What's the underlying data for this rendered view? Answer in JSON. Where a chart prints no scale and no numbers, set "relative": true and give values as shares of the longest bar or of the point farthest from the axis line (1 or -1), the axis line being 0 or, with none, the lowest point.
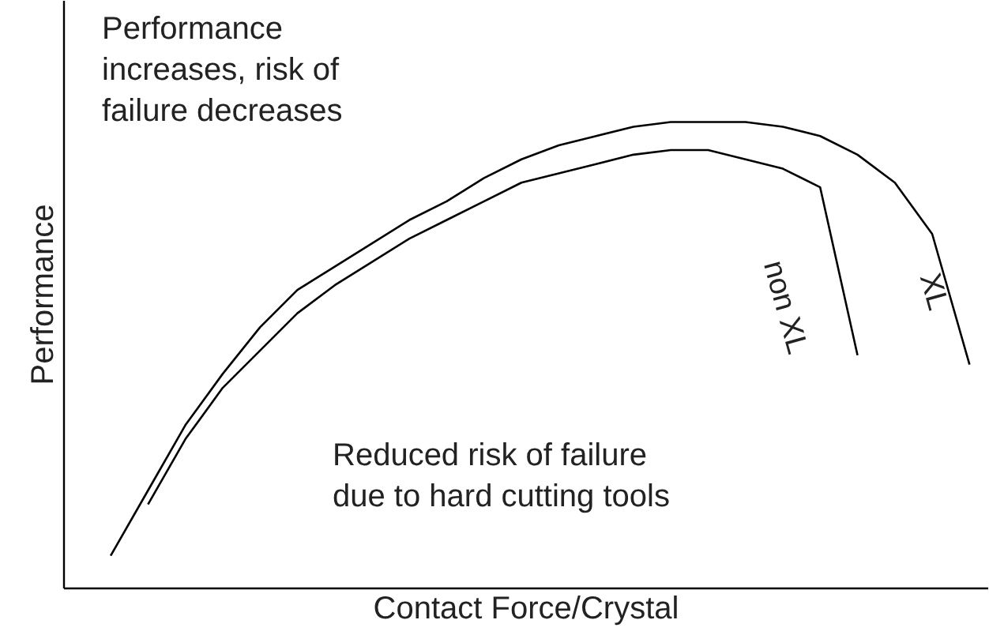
{
  "chart_data": {
    "type": "line",
    "relative": true,
    "xlabel": "Contact Force/Crystal",
    "ylabel": "Performance",
    "categories": [
      null,
      null,
      null,
      null,
      null,
      null,
      null,
      null,
      null,
      null,
      null,
      null,
      null,
      null,
      null,
      null,
      null,
      null,
      null,
      null,
      null,
      null,
      null,
      null
    ],
    "annotations": [
      "Performance increases, risk of failure decreases",
      "Reduced risk of failure due to hard cutting tools"
    ],
    "marker": "none",
    "line_style": "solid",
    "series": [
      {
        "name": "XL",
        "color": "#000000",
        "values": [
          0.07,
          0.21,
          0.35,
          0.46,
          0.56,
          0.64,
          0.69,
          0.74,
          0.79,
          0.83,
          0.88,
          0.92,
          0.95,
          0.97,
          0.99,
          1.0,
          1.0,
          1.0,
          0.99,
          0.97,
          0.93,
          0.87,
          0.76,
          0.48
        ]
      },
      {
        "name": "non XL",
        "color": "#000000",
        "values": [
          null,
          0.18,
          0.32,
          0.43,
          0.51,
          0.59,
          0.65,
          0.7,
          0.75,
          0.79,
          0.83,
          0.87,
          0.89,
          0.91,
          0.93,
          0.94,
          0.94,
          0.92,
          0.9,
          0.86,
          0.5,
          null,
          null,
          null
        ]
      }
    ]
  }
}
